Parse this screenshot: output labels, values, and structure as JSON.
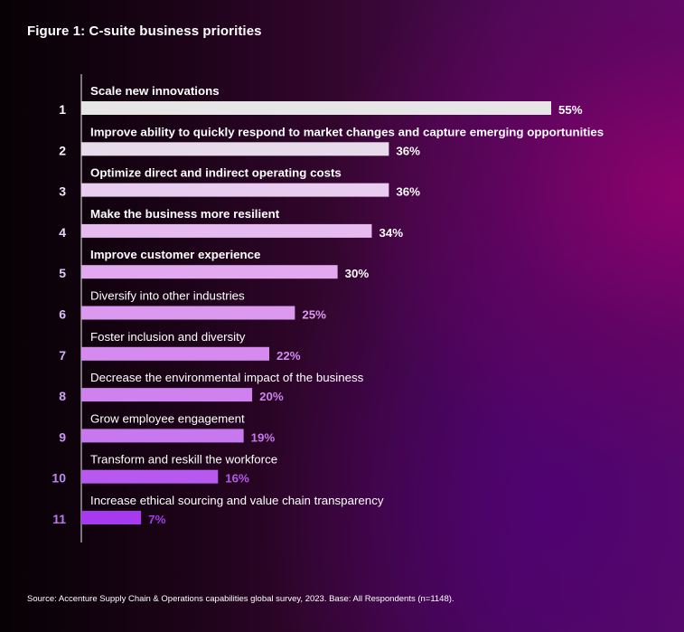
{
  "title": "Figure 1: C-suite business priorities",
  "source": "Source: Accenture Supply Chain & Operations capabilities global survey, 2023. Base: All Respondents (n=1148).",
  "colors": {
    "bar_gradient": [
      "#e6e6e6",
      "#e8cdf0",
      "#e2a8f0",
      "#d68aef",
      "#c878ee",
      "#a53aee"
    ],
    "rank_top": "#ffffff",
    "rank_bottom": "#b978f2"
  },
  "chart_data": {
    "type": "bar",
    "orientation": "horizontal",
    "ranks": [
      "1",
      "2",
      "3",
      "4",
      "5",
      "6",
      "7",
      "8",
      "9",
      "10",
      "11"
    ],
    "categories": [
      "Scale new innovations",
      "Improve ability to quickly respond to market changes and capture emerging opportunities",
      "Optimize direct and indirect operating costs",
      "Make the business more resilient",
      "Improve customer experience",
      "Diversify into other industries",
      "Foster inclusion and diversity",
      "Decrease the environmental impact of the business",
      "Grow employee engagement",
      "Transform and reskill the workforce",
      "Increase ethical sourcing and value chain transparency"
    ],
    "values": [
      55,
      36,
      36,
      34,
      30,
      25,
      22,
      20,
      19,
      16,
      7
    ],
    "value_labels": [
      "55%",
      "36%",
      "36%",
      "34%",
      "30%",
      "25%",
      "22%",
      "20%",
      "19%",
      "16%",
      "7%"
    ],
    "bold_labels": [
      true,
      true,
      true,
      true,
      true,
      false,
      false,
      false,
      false,
      false,
      false
    ],
    "xlim": [
      0,
      55
    ]
  }
}
